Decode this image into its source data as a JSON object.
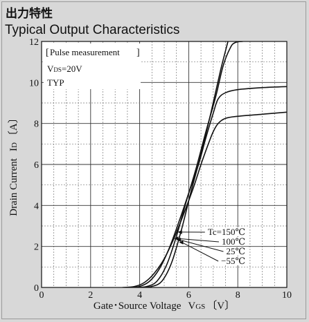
{
  "titles": {
    "jp": "出力特性",
    "en": "Typical Output Characteristics"
  },
  "chart_data": {
    "type": "line",
    "xlabel": "Gate･Source Voltage",
    "xlabel_symbol": "V",
    "xlabel_sub": "GS",
    "xlabel_unit": "〔V〕",
    "ylabel": "Drain Current",
    "ylabel_symbol": "I",
    "ylabel_sub": "D",
    "ylabel_unit": "〔A〕",
    "xlim": [
      0,
      10
    ],
    "ylim": [
      0,
      12
    ],
    "xticks": [
      0,
      2,
      4,
      6,
      8,
      10
    ],
    "yticks": [
      0,
      2,
      4,
      6,
      8,
      10,
      12
    ],
    "grid": true,
    "conditions": {
      "pulse": "Pulse measurement",
      "vds_symbol": "V",
      "vds_sub": "DS",
      "vds_value": "=20V",
      "typ": "TYP"
    },
    "series": [
      {
        "name": "Tc=150℃",
        "points": [
          [
            3.3,
            0
          ],
          [
            3.8,
            0.05
          ],
          [
            4.2,
            0.25
          ],
          [
            4.6,
            0.7
          ],
          [
            5.0,
            1.4
          ],
          [
            5.4,
            2.4
          ],
          [
            5.8,
            3.6
          ],
          [
            6.2,
            4.9
          ],
          [
            6.5,
            6.0
          ],
          [
            6.8,
            7.0
          ],
          [
            7.0,
            7.6
          ],
          [
            7.2,
            8.0
          ],
          [
            7.5,
            8.25
          ],
          [
            8.0,
            8.35
          ],
          [
            9.0,
            8.45
          ],
          [
            10,
            8.55
          ]
        ]
      },
      {
        "name": "100℃",
        "points": [
          [
            3.6,
            0
          ],
          [
            4.0,
            0.05
          ],
          [
            4.4,
            0.3
          ],
          [
            4.8,
            0.9
          ],
          [
            5.2,
            1.9
          ],
          [
            5.6,
            3.2
          ],
          [
            6.0,
            4.6
          ],
          [
            6.4,
            6.0
          ],
          [
            6.7,
            7.3
          ],
          [
            7.0,
            8.5
          ],
          [
            7.2,
            9.2
          ],
          [
            7.5,
            9.5
          ],
          [
            8.0,
            9.65
          ],
          [
            9.0,
            9.75
          ],
          [
            10,
            9.8
          ]
        ]
      },
      {
        "name": "25℃",
        "points": [
          [
            3.9,
            0
          ],
          [
            4.3,
            0.05
          ],
          [
            4.7,
            0.3
          ],
          [
            5.1,
            1.1
          ],
          [
            5.5,
            2.5
          ],
          [
            5.9,
            4.2
          ],
          [
            6.3,
            5.8
          ],
          [
            6.7,
            7.6
          ],
          [
            7.1,
            9.3
          ],
          [
            7.4,
            10.8
          ],
          [
            7.7,
            11.7
          ],
          [
            7.9,
            11.95
          ],
          [
            8.2,
            12.0
          ]
        ]
      },
      {
        "name": "−55℃",
        "points": [
          [
            4.1,
            0
          ],
          [
            4.5,
            0.05
          ],
          [
            4.9,
            0.3
          ],
          [
            5.3,
            1.2
          ],
          [
            5.7,
            2.8
          ],
          [
            6.1,
            4.7
          ],
          [
            6.5,
            6.5
          ],
          [
            6.9,
            8.5
          ],
          [
            7.3,
            10.6
          ],
          [
            7.6,
            12.0
          ]
        ]
      }
    ],
    "legend": {
      "placement": "center-right",
      "labels": [
        "Tc=150℃",
        "100℃",
        "25℃",
        "−55℃"
      ]
    }
  }
}
